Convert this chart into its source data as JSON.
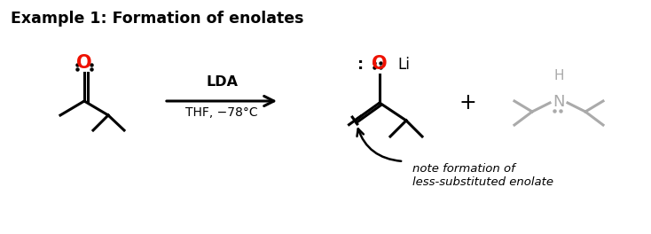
{
  "title": "Example 1: Formation of enolates",
  "title_fontsize": 12.5,
  "title_color": "#000000",
  "bg_color": "#ffffff",
  "text_color": "#000000",
  "O_color": "#ee1100",
  "gray_color": "#aaaaaa",
  "arrow_label_line1": "LDA",
  "arrow_label_line2": "THF, −78°C",
  "note_line1": "note formation of",
  "note_line2": "less-substituted enolate"
}
